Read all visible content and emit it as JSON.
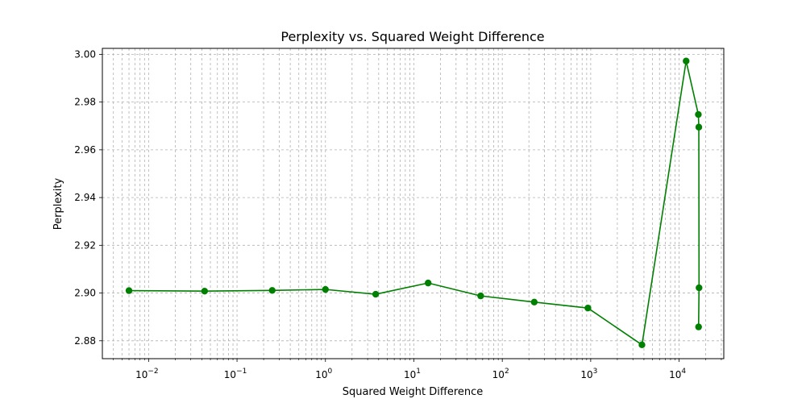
{
  "chart_data": {
    "type": "line",
    "title": "Perplexity vs. Squared Weight Difference",
    "xlabel": "Squared Weight Difference",
    "ylabel": "Perplexity",
    "x_scale": "log",
    "xlim": [
      0.003,
      32000
    ],
    "ylim": [
      2.8725,
      3.0025
    ],
    "x_ticks": [
      {
        "value": 0.01,
        "base": "10",
        "exp": "−2"
      },
      {
        "value": 0.1,
        "base": "10",
        "exp": "−1"
      },
      {
        "value": 1,
        "base": "10",
        "exp": "0"
      },
      {
        "value": 10,
        "base": "10",
        "exp": "1"
      },
      {
        "value": 100,
        "base": "10",
        "exp": "2"
      },
      {
        "value": 1000,
        "base": "10",
        "exp": "3"
      },
      {
        "value": 10000,
        "base": "10",
        "exp": "4"
      }
    ],
    "y_ticks": [
      "2.88",
      "2.90",
      "2.92",
      "2.94",
      "2.96",
      "2.98",
      "3.00"
    ],
    "grid": true,
    "color": "#008000",
    "series": [
      {
        "x": [
          0.006,
          0.043,
          0.25,
          1.0,
          3.7,
          14.5,
          57,
          230,
          930,
          3800,
          12000,
          16500,
          16700,
          16800,
          16600
        ],
        "y": [
          2.901,
          2.9008,
          2.9011,
          2.9015,
          2.8995,
          2.9042,
          2.8988,
          2.8962,
          2.8937,
          2.8783,
          2.9972,
          2.9748,
          2.9695,
          2.9022,
          2.8858
        ]
      }
    ]
  }
}
